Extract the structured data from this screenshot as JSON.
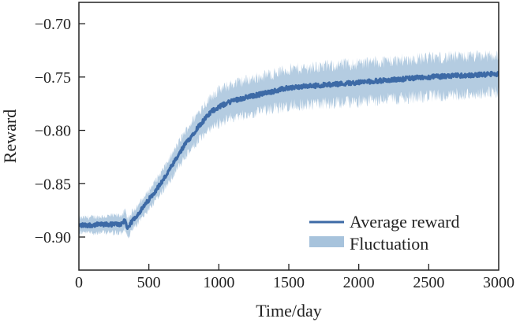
{
  "chart_data": {
    "type": "line",
    "title": "",
    "xlabel": "Time/day",
    "ylabel": "Reward",
    "xlim": [
      0,
      3000
    ],
    "ylim": [
      -0.931,
      -0.68
    ],
    "xticks": [
      0,
      500,
      1000,
      1500,
      2000,
      2500,
      3000
    ],
    "xtick_labels": [
      "0",
      "500",
      "1000",
      "1500",
      "2000",
      "2500",
      "3000"
    ],
    "yticks": [
      -0.7,
      -0.75,
      -0.8,
      -0.85,
      -0.9
    ],
    "ytick_labels": [
      "−0.70",
      "−0.75",
      "−0.80",
      "−0.85",
      "−0.90"
    ],
    "grid": false,
    "legend_position": "bottom-right",
    "series": [
      {
        "name": "Average reward",
        "color": "#3d6aa6",
        "x": [
          0,
          300,
          330,
          350,
          380,
          450,
          500,
          600,
          700,
          750,
          850,
          950,
          1000,
          1100,
          1300,
          1500,
          2000,
          2500,
          3000
        ],
        "values": [
          -0.889,
          -0.888,
          -0.884,
          -0.893,
          -0.885,
          -0.874,
          -0.865,
          -0.847,
          -0.826,
          -0.815,
          -0.797,
          -0.782,
          -0.778,
          -0.772,
          -0.766,
          -0.76,
          -0.755,
          -0.75,
          -0.747
        ]
      },
      {
        "name": "Fluctuation",
        "type": "band",
        "color": "#a7c3dc",
        "x": [
          0,
          350,
          500,
          750,
          1000,
          1500,
          2000,
          2500,
          3000
        ],
        "half_width": [
          0.008,
          0.01,
          0.01,
          0.014,
          0.018,
          0.02,
          0.021,
          0.021,
          0.02
        ]
      }
    ],
    "legend": [
      "Average reward",
      "Fluctuation"
    ]
  }
}
